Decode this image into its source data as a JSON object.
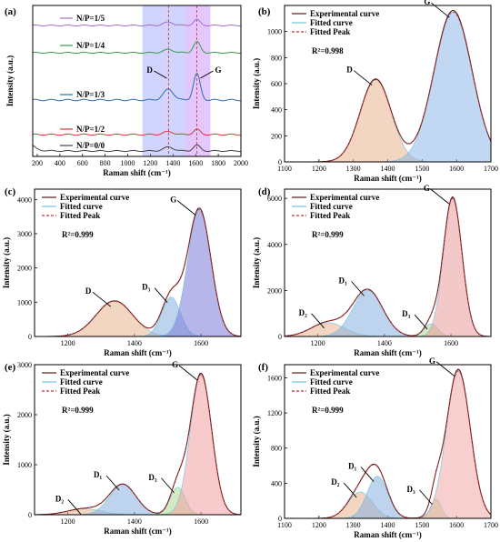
{
  "chart_data": [
    {
      "id": "a",
      "panel_label": "(a)",
      "type": "line",
      "xlabel": "Raman shift (cm⁻¹)",
      "ylabel": "Intensity (a.u.)",
      "xlim": [
        160,
        2000
      ],
      "xticks": [
        200,
        400,
        600,
        800,
        1000,
        1200,
        1400,
        1600,
        1800,
        2000
      ],
      "shaded_bands": [
        {
          "x": [
            1130,
            1510
          ],
          "color": "#9aa0ff"
        },
        {
          "x": [
            1510,
            1730
          ],
          "color": "#c583ff"
        }
      ],
      "dashed_lines": [
        1360,
        1610
      ],
      "peak_labels": [
        {
          "text": "D",
          "x": 1360
        },
        {
          "text": "G",
          "x": 1610
        }
      ],
      "series": [
        {
          "name": "N/P=1/5",
          "color": "#9b6fd0",
          "D": 0.25,
          "G": 0.45
        },
        {
          "name": "N/P=1/4",
          "color": "#3a9a4a",
          "D": 0.25,
          "G": 0.85
        },
        {
          "name": "N/P=1/3",
          "color": "#2f6db0",
          "D": 0.65,
          "G": 1.6
        },
        {
          "name": "N/P=1/2",
          "color": "#d03a3a",
          "D": 0.2,
          "G": 0.35
        },
        {
          "name": "N/P=0/0",
          "color": "#444444",
          "D": 0.3,
          "G": 0.45
        }
      ]
    },
    {
      "id": "b",
      "panel_label": "(b)",
      "type": "area",
      "xlabel": "Raman shift (cm⁻¹)",
      "ylabel": "Intensity (a.u.)",
      "xlim": [
        1100,
        1700
      ],
      "ylim": [
        0,
        1200
      ],
      "xticks": [
        1100,
        1200,
        1300,
        1400,
        1500,
        1600,
        1700
      ],
      "yticks": [
        0,
        200,
        400,
        600,
        800,
        1000
      ],
      "legend": [
        "Experimental curve",
        "Fitted curve",
        "Fitted Peak"
      ],
      "r2": "R²=0.998",
      "peaks": [
        {
          "label": "D",
          "center": 1365,
          "height": 630,
          "width": 45
        },
        {
          "label": "G",
          "center": 1590,
          "height": 1150,
          "width": 55
        }
      ]
    },
    {
      "id": "c",
      "panel_label": "(c)",
      "type": "area",
      "xlabel": "Raman shift (cm⁻¹)",
      "ylabel": "Intensity (a.u.)",
      "xlim": [
        1100,
        1720
      ],
      "ylim": [
        0,
        4300
      ],
      "xticks": [
        1200,
        1400,
        1600
      ],
      "yticks": [
        0,
        1000,
        2000,
        3000,
        4000
      ],
      "legend": [
        "Experimental curve",
        "Fitted curve",
        "Fitted Peak"
      ],
      "r2": "R²=0.999",
      "peaks": [
        {
          "label": "D",
          "center": 1340,
          "height": 1030,
          "width": 55
        },
        {
          "label": "D₃",
          "center": 1510,
          "height": 1150,
          "width": 28
        },
        {
          "label": "G",
          "center": 1595,
          "height": 3700,
          "width": 35
        }
      ]
    },
    {
      "id": "d",
      "panel_label": "(d)",
      "type": "area",
      "xlabel": "Raman shift (cm⁻¹)",
      "ylabel": "Intensity (a.u.)",
      "xlim": [
        1100,
        1720
      ],
      "ylim": [
        0,
        6400
      ],
      "xticks": [
        1200,
        1400,
        1600
      ],
      "yticks": [
        0,
        2000,
        4000,
        6000
      ],
      "legend": [
        "Experimental curve",
        "Fitted curve",
        "Fitted Peak"
      ],
      "r2": "R²=0.999",
      "peaks": [
        {
          "label": "D₂",
          "center": 1230,
          "height": 600,
          "width": 50
        },
        {
          "label": "D₁",
          "center": 1350,
          "height": 2000,
          "width": 45
        },
        {
          "label": "D₃",
          "center": 1540,
          "height": 550,
          "width": 20
        },
        {
          "label": "G",
          "center": 1605,
          "height": 6000,
          "width": 28
        }
      ]
    },
    {
      "id": "e",
      "panel_label": "(e)",
      "type": "area",
      "xlabel": "Raman shift (cm⁻¹)",
      "ylabel": "Intensity (a.u.)",
      "xlim": [
        1100,
        1720
      ],
      "ylim": [
        0,
        3000
      ],
      "xticks": [
        1200,
        1400,
        1600
      ],
      "yticks": [
        0,
        1000,
        2000,
        3000
      ],
      "legend": [
        "Experimental curve",
        "Fitted curve",
        "Fitted Peak"
      ],
      "r2": "R²=0.999",
      "peaks": [
        {
          "label": "D₂",
          "center": 1250,
          "height": 120,
          "width": 50
        },
        {
          "label": "D₁",
          "center": 1365,
          "height": 600,
          "width": 40
        },
        {
          "label": "D₃",
          "center": 1530,
          "height": 550,
          "width": 22
        },
        {
          "label": "G",
          "center": 1600,
          "height": 2800,
          "width": 32
        }
      ]
    },
    {
      "id": "f",
      "panel_label": "(f)",
      "type": "area",
      "xlabel": "Raman shift (cm⁻¹)",
      "ylabel": "Intensity (a.u.)",
      "xlim": [
        1100,
        1700
      ],
      "ylim": [
        0,
        1750
      ],
      "xticks": [
        1100,
        1200,
        1300,
        1400,
        1500,
        1600,
        1700
      ],
      "yticks": [
        0,
        400,
        800,
        1200,
        1600
      ],
      "legend": [
        "Experimental curve",
        "Fitted curve",
        "Fitted Peak"
      ],
      "r2": "R²=0.999",
      "peaks": [
        {
          "label": "D₂",
          "center": 1320,
          "height": 300,
          "width": 35
        },
        {
          "label": "D₁",
          "center": 1370,
          "height": 480,
          "width": 30
        },
        {
          "label": "D₃",
          "center": 1540,
          "height": 220,
          "width": 15
        },
        {
          "label": "G",
          "center": 1605,
          "height": 1680,
          "width": 35
        }
      ]
    }
  ]
}
